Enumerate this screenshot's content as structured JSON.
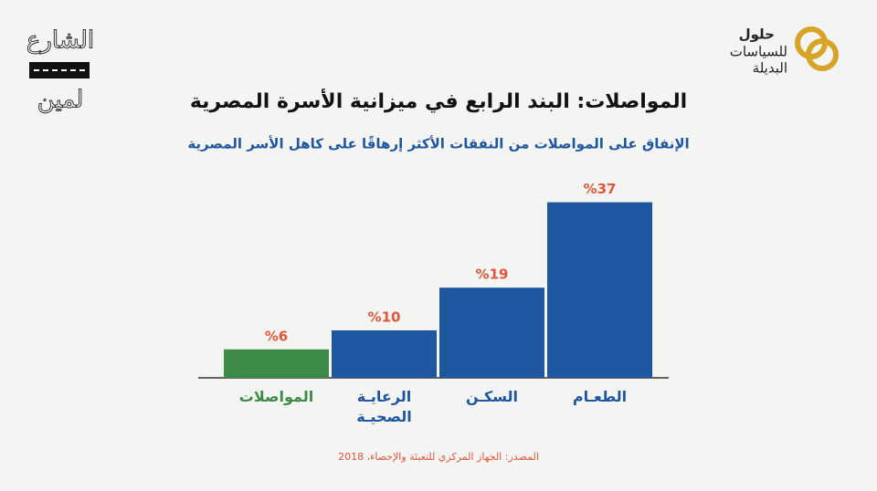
{
  "header": {
    "brand_title": "حلول",
    "brand_line1": "للسياسات",
    "brand_line2": "البديلة",
    "series_logo_top": "الشارع",
    "series_logo_bottom": "لمين"
  },
  "chart_data": {
    "type": "bar",
    "title": "المواصلات: البند الرابع في ميزانية الأسرة المصرية",
    "subtitle": "الإنفاق على المواصلات من النفقات الأكثر إرهاقًا على كاهل الأسر المصرية",
    "categories": [
      "المواصلات",
      "الرعايـة الصحيـة",
      "السكـن",
      "الطعـام"
    ],
    "values": [
      6,
      10,
      19,
      37
    ],
    "value_labels": [
      "%6",
      "%10",
      "%19",
      "%37"
    ],
    "colors": [
      "#3e8a47",
      "#1f56a0",
      "#1f56a0",
      "#1f56a0"
    ],
    "category_colors": [
      "#3e8a47",
      "#1f56a0",
      "#1f56a0",
      "#1f56a0"
    ],
    "value_label_color": "#e2563b",
    "source": "المصدر: الجهاز المركزي للتعبئة والإحصاء، 2018"
  }
}
